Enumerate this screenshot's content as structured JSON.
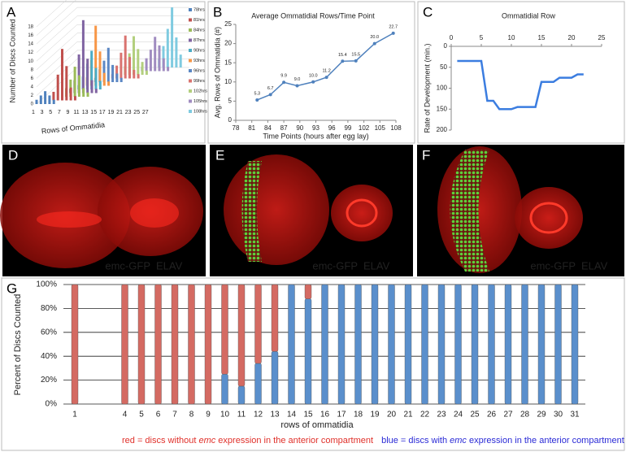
{
  "chart_data": [
    {
      "type": "bar3d",
      "label": "A",
      "ylabel": "Number of Discs Counted",
      "xlabel": "Rows of Ommatidia",
      "categories": [
        1,
        null,
        3,
        null,
        5,
        null,
        7,
        null,
        9,
        null,
        11,
        null,
        13,
        null,
        15,
        null,
        17,
        null,
        19,
        null,
        21,
        null,
        23,
        null,
        25,
        null,
        27
      ],
      "ylim": [
        0,
        18
      ],
      "yticks": [
        0,
        2,
        4,
        6,
        8,
        10,
        12,
        14,
        16,
        18
      ],
      "grid": true,
      "series": [
        {
          "name": "78hrs",
          "color": "#4f81bd",
          "values": [
            1,
            2,
            3,
            2,
            1,
            0,
            0,
            0,
            0,
            0,
            0,
            0,
            0,
            0,
            0,
            0,
            0,
            0,
            0,
            0,
            0,
            0,
            0,
            0,
            0,
            0,
            0
          ]
        },
        {
          "name": "81hrs",
          "color": "#c0504d",
          "values": [
            0,
            0,
            0,
            2,
            6,
            12,
            8,
            3,
            1,
            0,
            0,
            0,
            0,
            0,
            0,
            0,
            0,
            0,
            0,
            0,
            0,
            0,
            0,
            0,
            0,
            0,
            0
          ]
        },
        {
          "name": "84hrs",
          "color": "#9bbb59",
          "values": [
            0,
            0,
            0,
            0,
            0,
            2,
            4,
            7,
            5,
            2,
            1,
            0,
            0,
            0,
            0,
            0,
            0,
            0,
            0,
            0,
            0,
            0,
            0,
            0,
            0,
            0,
            0
          ]
        },
        {
          "name": "87hrs",
          "color": "#8064a2",
          "values": [
            0,
            0,
            0,
            0,
            0,
            1,
            3,
            9,
            17,
            8,
            3,
            1,
            0,
            0,
            0,
            0,
            0,
            0,
            0,
            0,
            0,
            0,
            0,
            0,
            0,
            0,
            0
          ]
        },
        {
          "name": "90hrs",
          "color": "#4bacc6",
          "values": [
            0,
            0,
            0,
            0,
            0,
            0,
            1,
            3,
            6,
            9,
            5,
            2,
            0,
            0,
            0,
            0,
            0,
            0,
            0,
            0,
            0,
            0,
            0,
            0,
            0,
            0,
            0
          ]
        },
        {
          "name": "93hrs",
          "color": "#f79646",
          "values": [
            0,
            0,
            0,
            0,
            0,
            0,
            0,
            2,
            6,
            14,
            8,
            3,
            1,
            0,
            0,
            0,
            0,
            0,
            0,
            0,
            0,
            0,
            0,
            0,
            0,
            0,
            0
          ]
        },
        {
          "name": "96hrs",
          "color": "#5b87c4",
          "values": [
            0,
            0,
            0,
            0,
            0,
            0,
            0,
            0,
            1,
            3,
            5,
            8,
            4,
            2,
            1,
            0,
            0,
            0,
            0,
            0,
            0,
            0,
            0,
            0,
            0,
            0,
            0
          ]
        },
        {
          "name": "99hrs",
          "color": "#d9736f",
          "values": [
            0,
            0,
            0,
            0,
            0,
            0,
            0,
            0,
            0,
            0,
            0,
            1,
            3,
            6,
            10,
            5,
            2,
            1,
            0,
            0,
            0,
            0,
            0,
            0,
            0,
            0,
            0
          ]
        },
        {
          "name": "102hrs",
          "color": "#b3cf7e",
          "values": [
            0,
            0,
            0,
            0,
            0,
            0,
            0,
            0,
            0,
            0,
            0,
            0,
            0,
            2,
            5,
            9,
            6,
            3,
            1,
            0,
            0,
            0,
            0,
            0,
            0,
            0,
            0
          ]
        },
        {
          "name": "105hrs",
          "color": "#a08cc0",
          "values": [
            0,
            0,
            0,
            0,
            0,
            0,
            0,
            0,
            0,
            0,
            0,
            0,
            0,
            0,
            0,
            0,
            1,
            3,
            5,
            8,
            6,
            3,
            1,
            0,
            0,
            0,
            0
          ]
        },
        {
          "name": "108hrs",
          "color": "#7fcbe0",
          "values": [
            0,
            0,
            0,
            0,
            0,
            0,
            0,
            0,
            0,
            0,
            0,
            0,
            0,
            0,
            0,
            0,
            0,
            0,
            0,
            2,
            5,
            9,
            14,
            7,
            3,
            0,
            0
          ]
        }
      ]
    },
    {
      "type": "line",
      "label": "B",
      "title": "Average Ommatidial Rows/Time Point",
      "ylabel": "Avg. Rows of Ommatidia (#)",
      "xlabel": "Time Points (hours after egg lay)",
      "x": [
        82,
        84.5,
        87,
        89.5,
        92.5,
        95,
        98,
        100.5,
        104,
        107.5
      ],
      "values": [
        5.3,
        6.7,
        9.9,
        9,
        10,
        11.2,
        15.4,
        15.5,
        20,
        22.7
      ],
      "value_labels": [
        "5.3",
        "6.7",
        "9.9",
        "9.0",
        "10.0",
        "11.2",
        "15.4",
        "15.5",
        "20.0",
        "22.7"
      ],
      "color": "#4f81bd",
      "xlim": [
        78,
        108
      ],
      "xticks": [
        78,
        81,
        84,
        87,
        90,
        93,
        96,
        99,
        102,
        105,
        108
      ],
      "ylim": [
        0,
        25
      ],
      "yticks": [
        0,
        5,
        10,
        15,
        20,
        25
      ]
    },
    {
      "type": "line",
      "label": "C",
      "title": "Ommatidial Row",
      "ylabel": "Rate of Development (min.)",
      "x": [
        1,
        2,
        3,
        4,
        5,
        6,
        7,
        8,
        9,
        10,
        11,
        12,
        13,
        14,
        15,
        16,
        17,
        18,
        19,
        20,
        21,
        22
      ],
      "values": [
        35,
        35,
        35,
        35,
        35,
        130,
        130,
        150,
        150,
        150,
        145,
        145,
        145,
        145,
        85,
        85,
        85,
        75,
        75,
        75,
        67,
        67
      ],
      "color": "#3b7de0",
      "xlim": [
        0,
        25
      ],
      "xticks": [
        0,
        5,
        10,
        15,
        20,
        25
      ],
      "ylim": [
        0,
        200
      ],
      "yticks": [
        0,
        50,
        100,
        150,
        200
      ],
      "y_inverted": true,
      "x_axis_position": "top"
    },
    {
      "type": "stacked_bar",
      "label": "G",
      "ylabel": "Percent of Discs Counted",
      "xlabel": "rows of ommatidia",
      "categories": [
        1,
        null,
        null,
        4,
        5,
        6,
        7,
        8,
        9,
        10,
        11,
        12,
        13,
        14,
        15,
        16,
        17,
        18,
        19,
        20,
        21,
        22,
        23,
        24,
        25,
        26,
        27,
        28,
        29,
        30,
        31
      ],
      "ylim": [
        0,
        100
      ],
      "yticks": [
        {
          "value": 0,
          "label": "0%"
        },
        {
          "value": 20,
          "label": "20%"
        },
        {
          "value": 40,
          "label": "40%"
        },
        {
          "value": 60,
          "label": "60%"
        },
        {
          "value": 80,
          "label": "80%"
        },
        {
          "value": 100,
          "label": "100%"
        }
      ],
      "grid": true,
      "series": [
        {
          "color": "#5a8fcc",
          "values": [
            0,
            null,
            null,
            0,
            0,
            0,
            0,
            0,
            0,
            25,
            15,
            34,
            44,
            100,
            88,
            100,
            100,
            100,
            100,
            100,
            100,
            100,
            100,
            100,
            100,
            100,
            100,
            100,
            100,
            100,
            100
          ]
        },
        {
          "color": "#d46a62",
          "values": [
            100,
            null,
            null,
            100,
            100,
            100,
            100,
            100,
            100,
            75,
            85,
            66,
            56,
            0,
            12,
            0,
            0,
            0,
            0,
            0,
            0,
            0,
            0,
            0,
            0,
            0,
            0,
            0,
            0,
            0,
            0
          ]
        }
      ],
      "legend": [
        {
          "color": "#e0302a",
          "parts": [
            "red = discs without ",
            "emc",
            " expression in the anterior compartment"
          ]
        },
        {
          "color": "#2a2ad6",
          "parts": [
            "blue = discs with ",
            "emc",
            " expression in the anterior compartment"
          ]
        }
      ]
    }
  ],
  "images": [
    {
      "label": "D",
      "red_text": "emc-GFP",
      "green_text": "ELAV"
    },
    {
      "label": "E",
      "red_text": "emc-GFP",
      "green_text": "ELAV"
    },
    {
      "label": "F",
      "red_text": "emc-GFP",
      "green_text": "ELAV"
    }
  ]
}
